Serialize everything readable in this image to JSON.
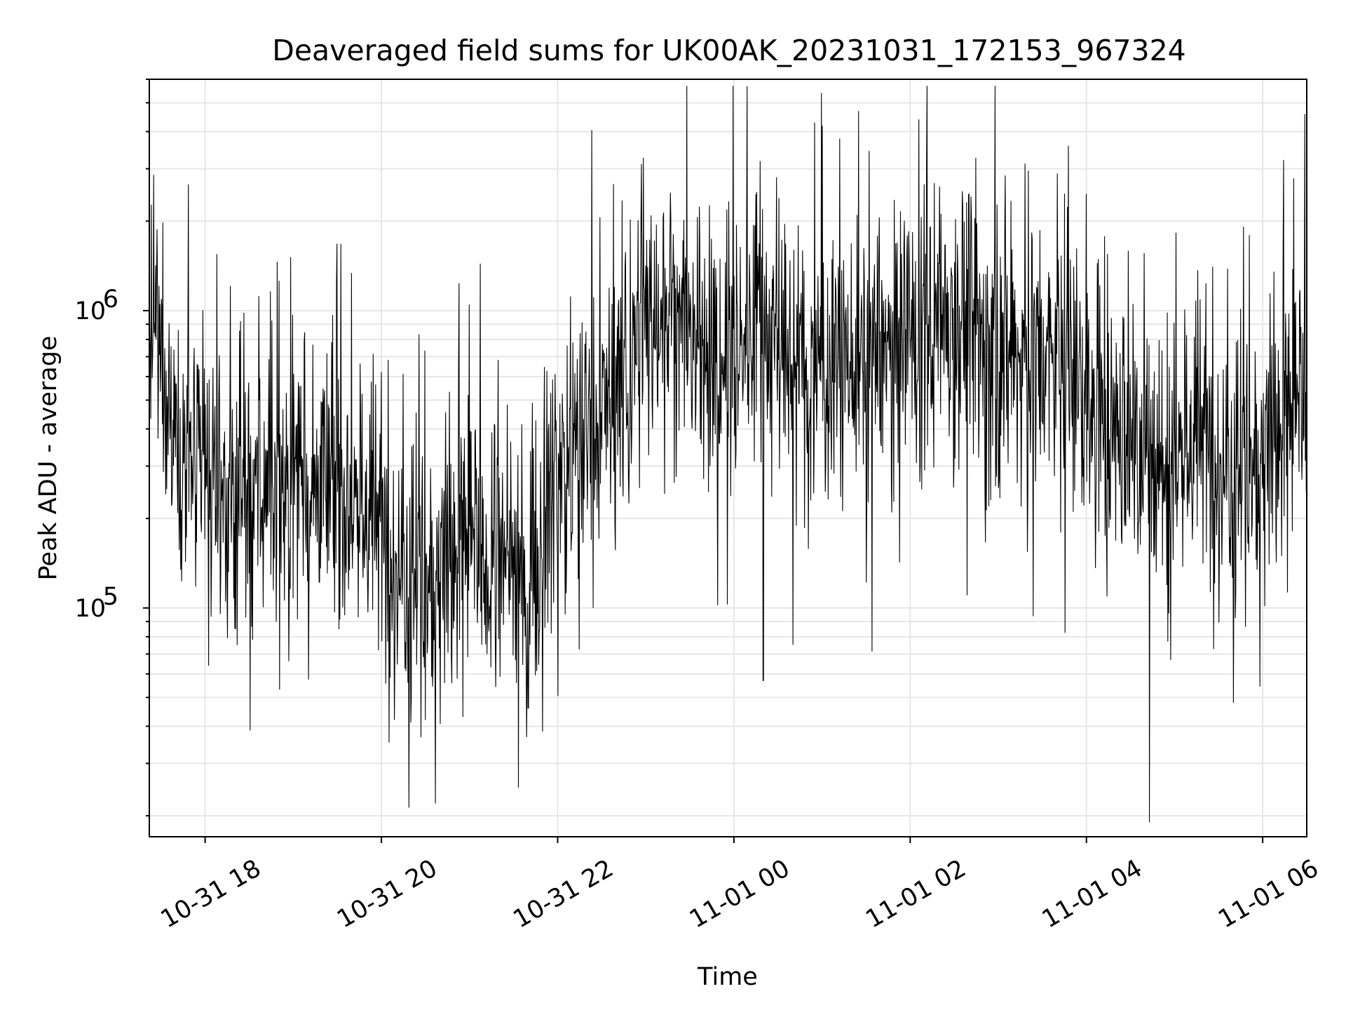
{
  "chart_data": {
    "type": "line",
    "title": "Deaveraged field sums for UK00AK_20231031_172153_967324",
    "xlabel": "Time",
    "ylabel": "Peak ADU - average",
    "y_scale": "log",
    "ylim": [
      17000,
      6000000
    ],
    "xlim": [
      "2023-10-31 17:22",
      "2023-11-01 06:30"
    ],
    "x_ticks": [
      {
        "t": "2023-10-31 18:00",
        "label": "10-31 18"
      },
      {
        "t": "2023-10-31 20:00",
        "label": "10-31 20"
      },
      {
        "t": "2023-10-31 22:00",
        "label": "10-31 22"
      },
      {
        "t": "2023-11-01 00:00",
        "label": "11-01 00"
      },
      {
        "t": "2023-11-01 02:00",
        "label": "11-01 02"
      },
      {
        "t": "2023-11-01 04:00",
        "label": "11-01 04"
      },
      {
        "t": "2023-11-01 06:00",
        "label": "11-01 06"
      }
    ],
    "y_ticks": [
      {
        "value": 100000,
        "base": "10",
        "exp": "5"
      },
      {
        "value": 1000000,
        "base": "10",
        "exp": "6"
      }
    ],
    "grid": true,
    "series": [
      {
        "color": "#000000",
        "x": [
          "2023-10-31 17:22",
          "2023-10-31 17:30",
          "2023-10-31 17:40",
          "2023-10-31 17:50",
          "2023-10-31 18:00",
          "2023-10-31 18:15",
          "2023-10-31 18:30",
          "2023-10-31 18:45",
          "2023-10-31 19:00",
          "2023-10-31 19:15",
          "2023-10-31 19:30",
          "2023-10-31 19:45",
          "2023-10-31 20:00",
          "2023-10-31 20:15",
          "2023-10-31 20:30",
          "2023-10-31 20:45",
          "2023-10-31 21:00",
          "2023-10-31 21:15",
          "2023-10-31 21:30",
          "2023-10-31 21:45",
          "2023-10-31 22:00",
          "2023-10-31 22:15",
          "2023-10-31 22:30",
          "2023-10-31 22:45",
          "2023-10-31 23:00",
          "2023-10-31 23:15",
          "2023-10-31 23:30",
          "2023-10-31 23:45",
          "2023-11-01 00:00",
          "2023-11-01 00:15",
          "2023-11-01 00:30",
          "2023-11-01 00:45",
          "2023-11-01 01:00",
          "2023-11-01 01:15",
          "2023-11-01 01:30",
          "2023-11-01 01:45",
          "2023-11-01 02:00",
          "2023-11-01 02:15",
          "2023-11-01 02:30",
          "2023-11-01 02:45",
          "2023-11-01 03:00",
          "2023-11-01 03:15",
          "2023-11-01 03:30",
          "2023-11-01 03:45",
          "2023-11-01 04:00",
          "2023-11-01 04:15",
          "2023-11-01 04:30",
          "2023-11-01 04:45",
          "2023-11-01 05:00",
          "2023-11-01 05:15",
          "2023-11-01 05:30",
          "2023-11-01 05:45",
          "2023-11-01 06:00",
          "2023-11-01 06:15",
          "2023-11-01 06:30"
        ],
        "y": [
          800000,
          700000,
          450000,
          300000,
          250000,
          220000,
          230000,
          250000,
          300000,
          260000,
          250000,
          230000,
          180000,
          140000,
          130000,
          150000,
          170000,
          140000,
          130000,
          150000,
          300000,
          350000,
          450000,
          600000,
          900000,
          1100000,
          800000,
          600000,
          700000,
          900000,
          800000,
          600000,
          650000,
          700000,
          650000,
          700000,
          800000,
          900000,
          1000000,
          900000,
          750000,
          700000,
          650000,
          700000,
          450000,
          400000,
          380000,
          300000,
          320000,
          380000,
          330000,
          300000,
          350000,
          420000,
          500000
        ]
      }
    ],
    "annotations": [
      {
        "t": "2023-10-31 20:30",
        "value": 42000
      },
      {
        "t": "2023-10-31 21:40",
        "value": 46000
      },
      {
        "t": "2023-11-01 00:20",
        "value": 57000
      },
      {
        "t": "2023-11-01 04:43",
        "value": 19000
      }
    ]
  }
}
